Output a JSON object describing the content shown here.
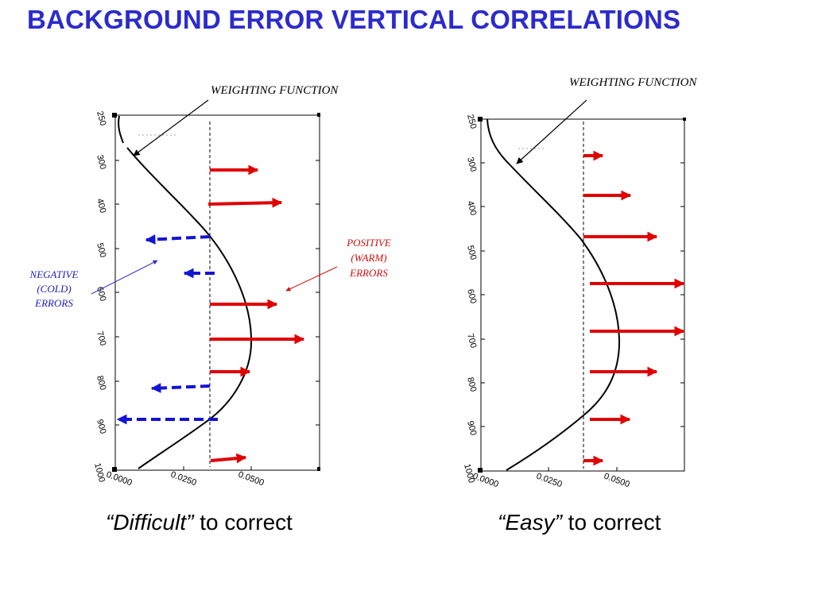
{
  "title": "BACKGROUND ERROR VERTICAL CORRELATIONS",
  "panels": [
    {
      "name": "difficult",
      "weighting_label": "WEIGHTING FUNCTION",
      "y_ticks": [
        "250",
        "300",
        "400",
        "500",
        "600",
        "700",
        "800",
        "900",
        "1000"
      ],
      "x_ticks": [
        "0.0000",
        "0.0250",
        "0.0500"
      ],
      "caption_quote": "“Difficult”",
      "caption_rest": " to correct",
      "arrow_colors": {
        "positive": "#e00000",
        "negative": "#1414d4"
      }
    },
    {
      "name": "easy",
      "weighting_label": "WEIGHTING FUNCTION",
      "y_ticks": [
        "250",
        "300",
        "400",
        "500",
        "600",
        "700",
        "800",
        "900",
        "1000"
      ],
      "x_ticks": [
        "0.0000",
        "0.0250",
        "0.0500"
      ],
      "caption_quote": "“Easy”",
      "caption_rest": " to correct",
      "arrow_colors": {
        "positive": "#e00000"
      }
    }
  ],
  "annotations": {
    "positive": [
      "POSITIVE",
      "(WARM)",
      "ERRORS"
    ],
    "negative": [
      "NEGATIVE",
      "(COLD)",
      "ERRORS"
    ]
  }
}
